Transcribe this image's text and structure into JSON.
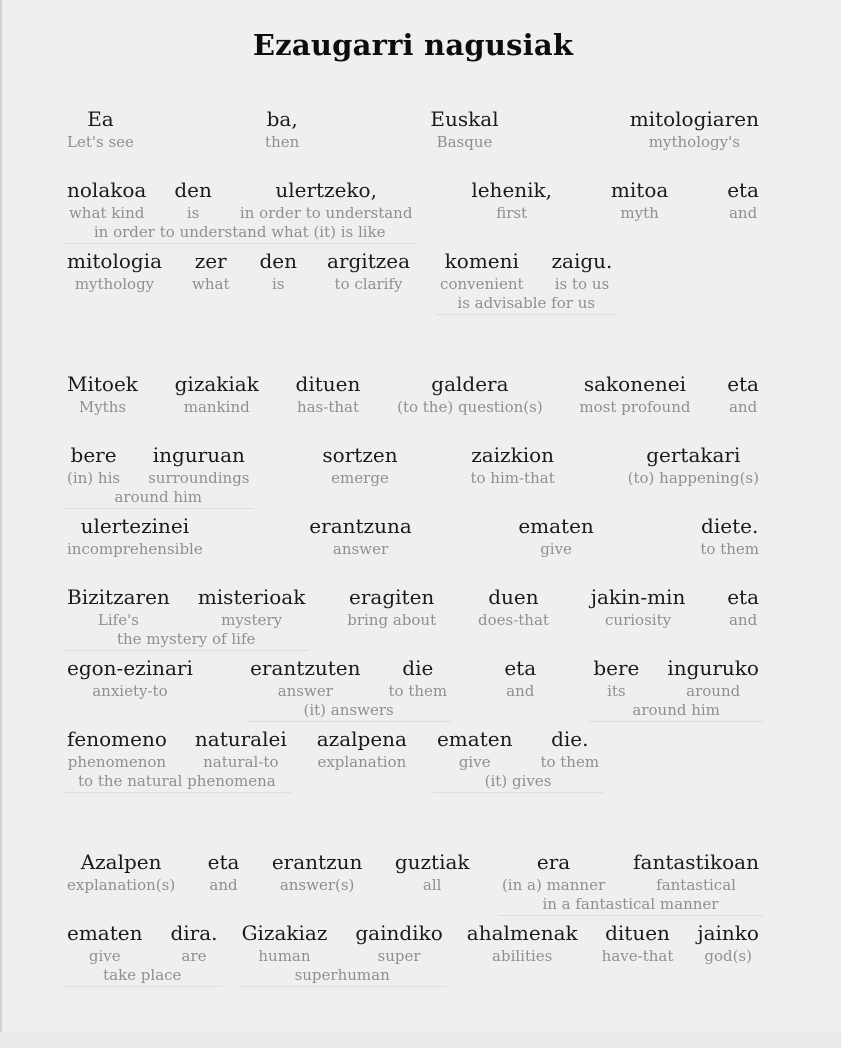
{
  "page": {
    "title": "Ezaugarri nagusiak",
    "colors": {
      "background": "#e9e9e9",
      "card_background": "#f0efef",
      "word_color": "#1a1a1a",
      "gloss_color": "#8f8f8f",
      "underline_color": "#dedede",
      "edge_color": "#d4d4d4"
    }
  },
  "paragraphs": [
    {
      "lines": [
        {
          "justify": true,
          "items": [
            {
              "words": [
                {
                  "bq": "Ea",
                  "en": "Let's see"
                }
              ]
            },
            {
              "words": [
                {
                  "bq": "ba,",
                  "en": "then"
                }
              ]
            },
            {
              "words": [
                {
                  "bq": "Euskal",
                  "en": "Basque"
                }
              ]
            },
            {
              "words": [
                {
                  "bq": "mitologiaren",
                  "en": "mythology's"
                }
              ]
            }
          ]
        },
        {
          "justify": true,
          "items": [
            {
              "words": [
                {
                  "bq": "nolakoa",
                  "en": "what kind"
                },
                {
                  "bq": "den",
                  "en": "is"
                },
                {
                  "bq": "ulertzeko,",
                  "en": "in order to understand"
                }
              ],
              "phrase": "in order to understand what (it) is like"
            },
            {
              "words": [
                {
                  "bq": "lehenik,",
                  "en": "first"
                }
              ]
            },
            {
              "words": [
                {
                  "bq": "mitoa",
                  "en": "myth"
                }
              ]
            },
            {
              "words": [
                {
                  "bq": "eta",
                  "en": "and"
                }
              ]
            }
          ]
        },
        {
          "justify": false,
          "items": [
            {
              "words": [
                {
                  "bq": "mitologia",
                  "en": "mythology"
                }
              ]
            },
            {
              "words": [
                {
                  "bq": "zer",
                  "en": "what"
                }
              ]
            },
            {
              "words": [
                {
                  "bq": "den",
                  "en": "is"
                }
              ]
            },
            {
              "words": [
                {
                  "bq": "argitzea",
                  "en": "to clarify"
                }
              ]
            },
            {
              "words": [
                {
                  "bq": "komeni",
                  "en": "convenient"
                },
                {
                  "bq": "zaigu.",
                  "en": "is to us"
                }
              ],
              "phrase": "is advisable for us"
            }
          ]
        }
      ]
    },
    {
      "lines": [
        {
          "justify": true,
          "items": [
            {
              "words": [
                {
                  "bq": "Mitoek",
                  "en": "Myths"
                }
              ]
            },
            {
              "words": [
                {
                  "bq": "gizakiak",
                  "en": "mankind"
                }
              ]
            },
            {
              "words": [
                {
                  "bq": "dituen",
                  "en": "has-that"
                }
              ]
            },
            {
              "words": [
                {
                  "bq": "galdera",
                  "en": "(to the) question(s)"
                }
              ]
            },
            {
              "words": [
                {
                  "bq": "sakonenei",
                  "en": "most profound"
                }
              ]
            },
            {
              "words": [
                {
                  "bq": "eta",
                  "en": "and"
                }
              ]
            }
          ]
        },
        {
          "justify": true,
          "items": [
            {
              "words": [
                {
                  "bq": "bere",
                  "en": "(in) his"
                },
                {
                  "bq": "inguruan",
                  "en": "surroundings"
                }
              ],
              "phrase": "around him"
            },
            {
              "words": [
                {
                  "bq": "sortzen",
                  "en": "emerge"
                }
              ]
            },
            {
              "words": [
                {
                  "bq": "zaizkion",
                  "en": "to him-that"
                }
              ]
            },
            {
              "words": [
                {
                  "bq": "gertakari",
                  "en": "(to) happening(s)"
                }
              ]
            }
          ]
        },
        {
          "justify": true,
          "items": [
            {
              "words": [
                {
                  "bq": "ulertezinei",
                  "en": "incomprehensible"
                }
              ]
            },
            {
              "words": [
                {
                  "bq": "erantzuna",
                  "en": "answer"
                }
              ]
            },
            {
              "words": [
                {
                  "bq": "ematen",
                  "en": "give"
                }
              ]
            },
            {
              "words": [
                {
                  "bq": "diete.",
                  "en": "to them"
                }
              ]
            }
          ]
        },
        {
          "justify": true,
          "items": [
            {
              "words": [
                {
                  "bq": "Bizitzaren",
                  "en": "Life's"
                },
                {
                  "bq": "misterioak",
                  "en": "mystery"
                }
              ],
              "phrase": "the mystery of life"
            },
            {
              "words": [
                {
                  "bq": "eragiten",
                  "en": "bring about"
                }
              ]
            },
            {
              "words": [
                {
                  "bq": "duen",
                  "en": "does-that"
                }
              ]
            },
            {
              "words": [
                {
                  "bq": "jakin-min",
                  "en": "curiosity"
                }
              ]
            },
            {
              "words": [
                {
                  "bq": "eta",
                  "en": "and"
                }
              ]
            }
          ]
        },
        {
          "justify": true,
          "items": [
            {
              "words": [
                {
                  "bq": "egon-ezinari",
                  "en": "anxiety-to"
                }
              ]
            },
            {
              "words": [
                {
                  "bq": "erantzuten",
                  "en": "answer"
                },
                {
                  "bq": "die",
                  "en": "to them"
                }
              ],
              "phrase": "(it) answers"
            },
            {
              "words": [
                {
                  "bq": "eta",
                  "en": "and"
                }
              ]
            },
            {
              "words": [
                {
                  "bq": "bere",
                  "en": "its"
                },
                {
                  "bq": "inguruko",
                  "en": "around"
                }
              ],
              "phrase": "around him"
            }
          ]
        },
        {
          "justify": false,
          "items": [
            {
              "words": [
                {
                  "bq": "fenomeno",
                  "en": "phenomenon"
                },
                {
                  "bq": "naturalei",
                  "en": "natural-to"
                }
              ],
              "phrase": "to the natural phenomena"
            },
            {
              "words": [
                {
                  "bq": "azalpena",
                  "en": "explanation"
                }
              ]
            },
            {
              "words": [
                {
                  "bq": "ematen",
                  "en": "give"
                },
                {
                  "bq": "die.",
                  "en": "to them"
                }
              ],
              "phrase": "(it) gives"
            }
          ]
        }
      ]
    },
    {
      "lines": [
        {
          "justify": true,
          "items": [
            {
              "words": [
                {
                  "bq": "Azalpen",
                  "en": "explanation(s)"
                }
              ]
            },
            {
              "words": [
                {
                  "bq": "eta",
                  "en": "and"
                }
              ]
            },
            {
              "words": [
                {
                  "bq": "erantzun",
                  "en": "answer(s)"
                }
              ]
            },
            {
              "words": [
                {
                  "bq": "guztiak",
                  "en": "all"
                }
              ]
            },
            {
              "words": [
                {
                  "bq": "era",
                  "en": "(in a) manner"
                },
                {
                  "bq": "fantastikoan",
                  "en": "fantastical"
                }
              ],
              "phrase": "in a fantastical manner"
            }
          ]
        },
        {
          "justify": true,
          "items": [
            {
              "words": [
                {
                  "bq": "ematen",
                  "en": "give"
                },
                {
                  "bq": "dira.",
                  "en": "are"
                }
              ],
              "phrase": "take place"
            },
            {
              "words": [
                {
                  "bq": "Gizakiaz",
                  "en": "human"
                },
                {
                  "bq": "gaindiko",
                  "en": "super"
                }
              ],
              "phrase": "superhuman"
            },
            {
              "words": [
                {
                  "bq": "ahalmenak",
                  "en": "abilities"
                }
              ]
            },
            {
              "words": [
                {
                  "bq": "dituen",
                  "en": "have-that"
                }
              ]
            },
            {
              "words": [
                {
                  "bq": "jainko",
                  "en": "god(s)"
                }
              ]
            }
          ]
        }
      ]
    }
  ]
}
